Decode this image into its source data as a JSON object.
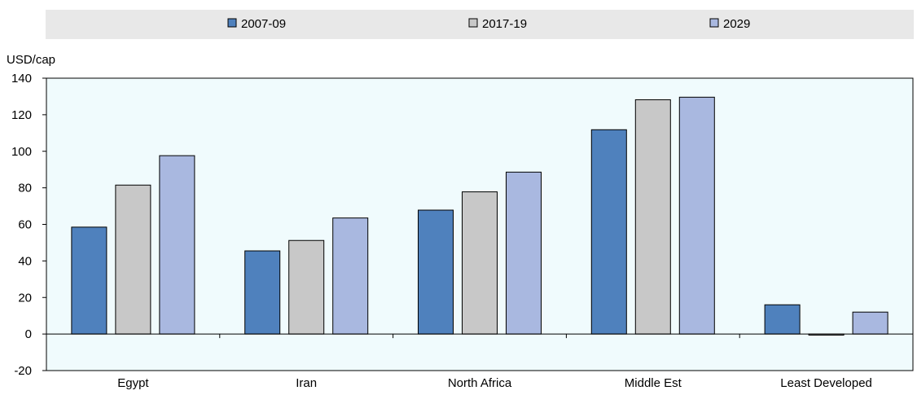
{
  "chart_data": {
    "type": "bar",
    "title": "",
    "xlabel": "",
    "ylabel": "USD/cap",
    "ylim": [
      -20,
      140
    ],
    "yticks": [
      -20,
      0,
      20,
      40,
      60,
      80,
      100,
      120,
      140
    ],
    "grid": false,
    "legend_placement": "top",
    "categories": [
      "Egypt",
      "Iran",
      "North Africa",
      "Middle Est",
      "Least Developed"
    ],
    "series": [
      {
        "name": "2007-09",
        "color": "#4f81bd",
        "values": [
          58.5,
          45.5,
          67.8,
          111.8,
          16
        ]
      },
      {
        "name": "2017-19",
        "color": "#c8c8c8",
        "values": [
          81.5,
          51.2,
          77.8,
          128.2,
          -0.6
        ]
      },
      {
        "name": "2029",
        "color": "#a9b8e0",
        "values": [
          97.6,
          63.5,
          88.6,
          129.6,
          12
        ]
      }
    ],
    "background_color": "#f0fbfd",
    "legend_background": "#e8e8e8"
  }
}
